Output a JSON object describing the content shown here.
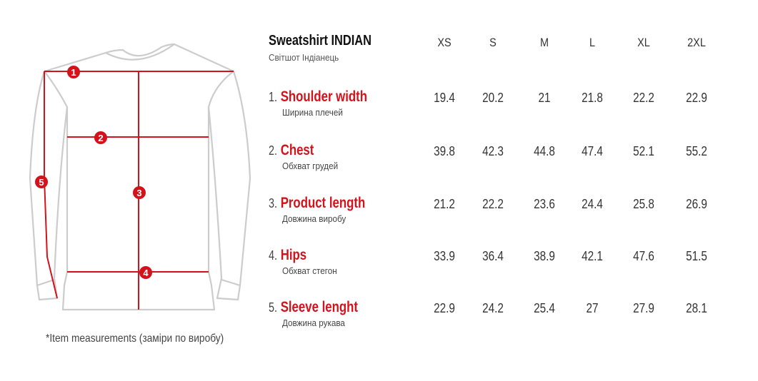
{
  "product": {
    "title": "Sweatshirt INDIAN",
    "subtitle": "Світшот Індіанець"
  },
  "footnote": "*Item measurements (заміри по виробу)",
  "colors": {
    "accent": "#d3131b",
    "outline": "#cccccc"
  },
  "sizes": [
    "XS",
    "S",
    "M",
    "L",
    "XL",
    "2XL"
  ],
  "measurements": [
    {
      "number": "1.",
      "name": "Shoulder width",
      "translation": "Ширина плечей",
      "values": [
        "19.4",
        "20.2",
        "21",
        "21.8",
        "22.2",
        "22.9"
      ]
    },
    {
      "number": "2.",
      "name": "Chest",
      "translation": "Обхват грудей",
      "values": [
        "39.8",
        "42.3",
        "44.8",
        "47.4",
        "52.1",
        "55.2"
      ]
    },
    {
      "number": "3.",
      "name": "Product length",
      "translation": "Довжина виробу",
      "values": [
        "21.2",
        "22.2",
        "23.6",
        "24.4",
        "25.8",
        "26.9"
      ]
    },
    {
      "number": "4.",
      "name": "Hips",
      "translation": "Обхват стегон",
      "values": [
        "33.9",
        "36.4",
        "38.9",
        "42.1",
        "47.6",
        "51.5"
      ]
    },
    {
      "number": "5.",
      "name": "Sleeve lenght",
      "translation": "Довжина рукава",
      "values": [
        "22.9",
        "24.2",
        "25.4",
        "27",
        "27.9",
        "28.1"
      ]
    }
  ],
  "markers": [
    "1",
    "2",
    "3",
    "4",
    "5"
  ]
}
